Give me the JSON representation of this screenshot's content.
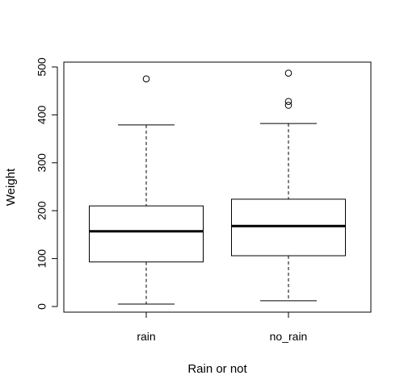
{
  "chart_data": {
    "type": "boxplot",
    "xlabel": "Rain or not",
    "ylabel": "Weight",
    "ylim": [
      0,
      500
    ],
    "yticks": [
      0,
      100,
      200,
      300,
      400,
      500
    ],
    "grid": false,
    "legend": "none",
    "categories": [
      "rain",
      "no_rain"
    ],
    "boxes": [
      {
        "category": "rain",
        "min": 5,
        "q1": 93,
        "median": 157,
        "q3": 210,
        "max": 379,
        "outliers": [
          475
        ]
      },
      {
        "category": "no_rain",
        "min": 12,
        "q1": 106,
        "median": 168,
        "q3": 224,
        "max": 382,
        "outliers": [
          420,
          428,
          487
        ]
      }
    ]
  }
}
